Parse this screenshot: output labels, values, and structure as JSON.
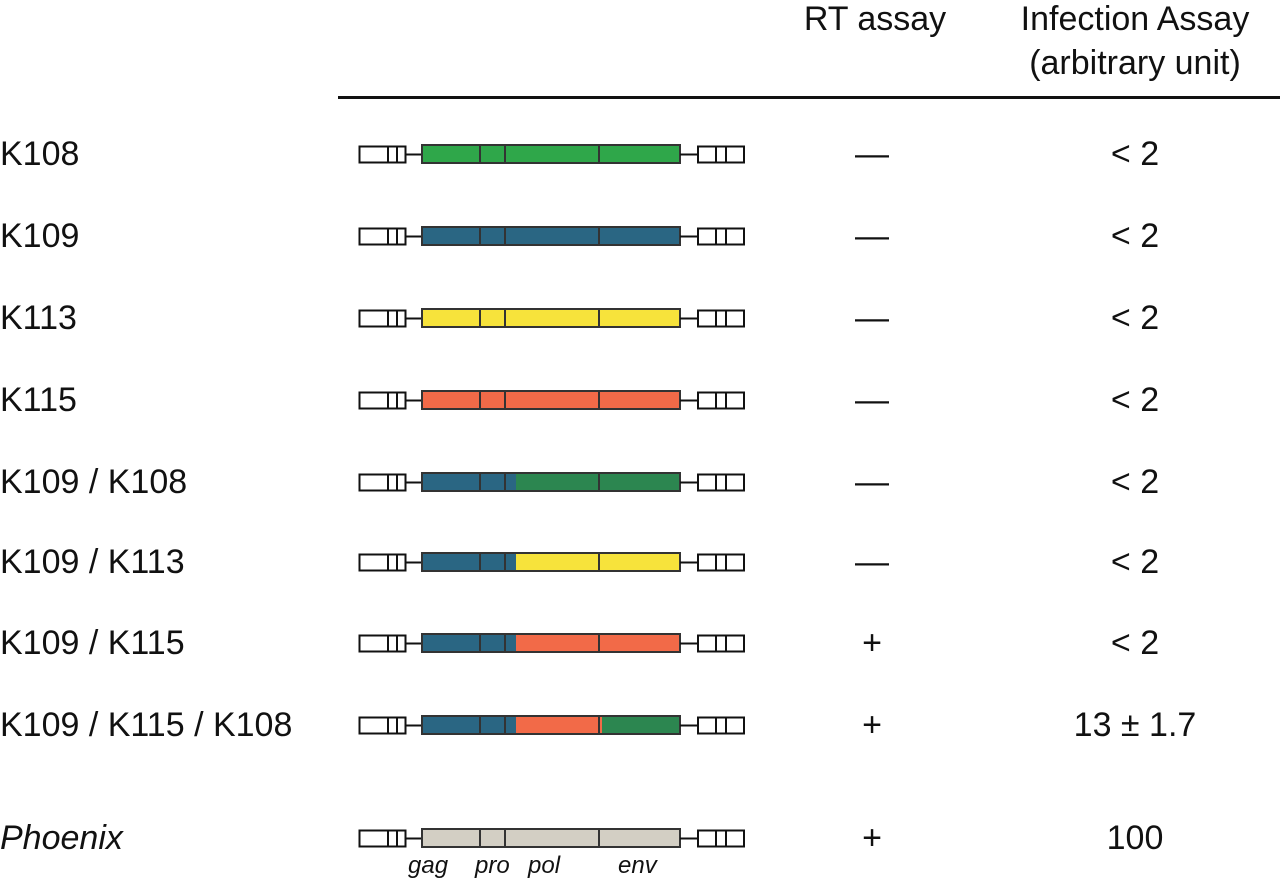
{
  "header": {
    "rt_assay": "RT assay",
    "infection_assay": "Infection Assay",
    "infection_assay_unit": "(arbitrary unit)"
  },
  "colors": {
    "K108": "#2fa74a",
    "K109": "#2a6683",
    "K113": "#f7e33b",
    "K115": "#f26a48",
    "K108_dark": "#2c8650",
    "Phoenix": "#d3cfc4"
  },
  "rows": [
    {
      "label": "K108",
      "italic": false,
      "rt": "—",
      "infection": "< 2",
      "segments": [
        "K108",
        "K108"
      ]
    },
    {
      "label": "K109",
      "italic": false,
      "rt": "—",
      "infection": "< 2",
      "segments": [
        "K109",
        "K109"
      ]
    },
    {
      "label": "K113",
      "italic": false,
      "rt": "—",
      "infection": "< 2",
      "segments": [
        "K113",
        "K113"
      ]
    },
    {
      "label": "K115",
      "italic": false,
      "rt": "—",
      "infection": "< 2",
      "segments": [
        "K115",
        "K115"
      ]
    },
    {
      "label": "K109 / K108",
      "italic": false,
      "rt": "—",
      "infection": "< 2",
      "segments": [
        "K109",
        "K108_dark"
      ]
    },
    {
      "label": "K109 / K113",
      "italic": false,
      "rt": "—",
      "infection": "< 2",
      "segments": [
        "K109",
        "K113"
      ]
    },
    {
      "label": "K109 / K115",
      "italic": false,
      "rt": "+",
      "infection": "< 2",
      "segments": [
        "K109",
        "K115"
      ]
    },
    {
      "label": "K109 / K115 / K108",
      "italic": false,
      "rt": "+",
      "infection": "13 ± 1.7",
      "segments": [
        "K109",
        "K115",
        "K108_dark"
      ]
    },
    {
      "label": "Phoenix",
      "italic": true,
      "rt": "+",
      "infection": "100",
      "segments": [
        "Phoenix",
        "Phoenix"
      ]
    }
  ],
  "gene_labels": {
    "gag": "gag",
    "pro": "pro",
    "pol": "pol",
    "env": "env"
  }
}
